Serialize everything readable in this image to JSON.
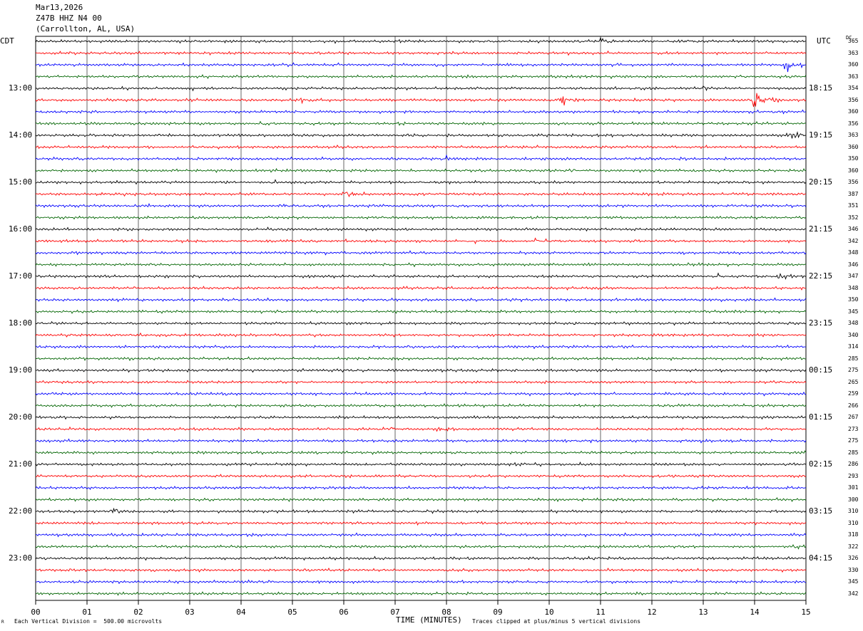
{
  "header": {
    "date": "Mar13,2026",
    "station": "Z47B HHZ N4 00",
    "location": "(Carrollton, AL, USA)"
  },
  "labels": {
    "left_tz": "CDT",
    "right_tz": "UTC",
    "dc_header": "DC"
  },
  "footer": {
    "scale": "Each Vertical Division =  500.00 microvolts",
    "clip": "Traces clipped at plus/minus 5 vertical divisions",
    "corner_mark": "R"
  },
  "colors": {
    "trace_cycle": [
      "#000000",
      "#ff0000",
      "#0000ff",
      "#006400"
    ],
    "grid": "#000000"
  },
  "chart_data": {
    "type": "line",
    "title": "Z47B HHZ N4 00",
    "xlabel": "TIME (MINUTES)",
    "xlim": [
      0,
      15
    ],
    "x_ticks": [
      "00",
      "01",
      "02",
      "03",
      "04",
      "05",
      "06",
      "07",
      "08",
      "09",
      "10",
      "11",
      "12",
      "13",
      "14",
      "15"
    ],
    "grid": true,
    "hour_labels_cdt": [
      "13:00",
      "14:00",
      "15:00",
      "16:00",
      "17:00",
      "18:00",
      "19:00",
      "20:00",
      "21:00",
      "22:00",
      "23:00"
    ],
    "hour_labels_utc": [
      "18:15",
      "19:15",
      "20:15",
      "21:15",
      "22:15",
      "23:15",
      "00:15",
      "01:15",
      "02:15",
      "03:15",
      "04:15"
    ],
    "trace_dc_offsets": [
      365,
      363,
      360,
      363,
      354,
      356,
      360,
      356,
      363,
      360,
      350,
      360,
      356,
      387,
      351,
      352,
      346,
      342,
      348,
      346,
      347,
      348,
      350,
      345,
      348,
      340,
      314,
      285,
      275,
      265,
      259,
      266,
      267,
      273,
      275,
      285,
      286,
      293,
      301,
      300,
      310,
      310,
      318,
      322,
      326,
      330,
      345,
      342
    ],
    "events": [
      {
        "trace": 0,
        "minute": 11.0,
        "amp": 1.4
      },
      {
        "trace": 0,
        "minute": 12.6,
        "amp": 0.8
      },
      {
        "trace": 2,
        "minute": 7.7,
        "amp": 1.0
      },
      {
        "trace": 2,
        "minute": 14.6,
        "amp": 3.0
      },
      {
        "trace": 4,
        "minute": 2.9,
        "amp": 0.7
      },
      {
        "trace": 4,
        "minute": 13.0,
        "amp": 0.8
      },
      {
        "trace": 5,
        "minute": 5.2,
        "amp": 0.9
      },
      {
        "trace": 5,
        "minute": 10.2,
        "amp": 2.6
      },
      {
        "trace": 5,
        "minute": 14.0,
        "amp": 4.0
      },
      {
        "trace": 7,
        "minute": 4.4,
        "amp": 0.8
      },
      {
        "trace": 7,
        "minute": 7.0,
        "amp": 0.7
      },
      {
        "trace": 8,
        "minute": 14.7,
        "amp": 2.2
      },
      {
        "trace": 10,
        "minute": 6.0,
        "amp": 0.7
      },
      {
        "trace": 10,
        "minute": 8.0,
        "amp": 0.8
      },
      {
        "trace": 11,
        "minute": 10.5,
        "amp": 1.0
      },
      {
        "trace": 12,
        "minute": 4.6,
        "amp": 0.7
      },
      {
        "trace": 13,
        "minute": 1.2,
        "amp": 0.8
      },
      {
        "trace": 13,
        "minute": 6.0,
        "amp": 2.0
      },
      {
        "trace": 14,
        "minute": 2.0,
        "amp": 0.6
      },
      {
        "trace": 14,
        "minute": 4.8,
        "amp": 0.8
      },
      {
        "trace": 15,
        "minute": 9.1,
        "amp": 0.7
      },
      {
        "trace": 17,
        "minute": 8.4,
        "amp": 0.8
      },
      {
        "trace": 17,
        "minute": 9.7,
        "amp": 0.9
      },
      {
        "trace": 20,
        "minute": 13.3,
        "amp": 0.8
      },
      {
        "trace": 20,
        "minute": 14.5,
        "amp": 0.9
      },
      {
        "trace": 33,
        "minute": 6.9,
        "amp": 0.8
      },
      {
        "trace": 33,
        "minute": 7.8,
        "amp": 1.2
      },
      {
        "trace": 38,
        "minute": 12.8,
        "amp": 0.6
      },
      {
        "trace": 40,
        "minute": 1.5,
        "amp": 1.4
      },
      {
        "trace": 43,
        "minute": 14.8,
        "amp": 0.7
      }
    ]
  }
}
